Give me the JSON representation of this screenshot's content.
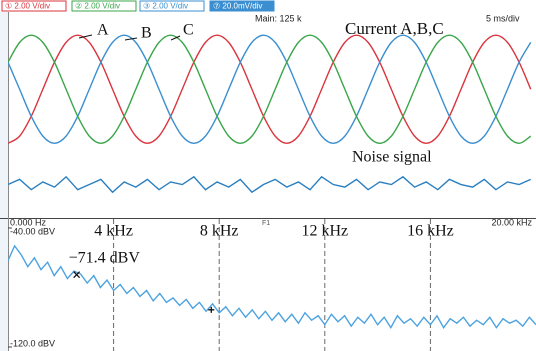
{
  "header": {
    "channels": [
      {
        "label": "① 2.00 V/div",
        "color": "#d9363e",
        "filled": false
      },
      {
        "label": "② 2.00 V/div",
        "color": "#3aa64a",
        "filled": false
      },
      {
        "label": "③ 2.00 V/div",
        "color": "#3b8fd0",
        "filled": false
      },
      {
        "label": "⑦ 20.0mV/div",
        "color": "#3b8fd0",
        "filled": true
      }
    ]
  },
  "chart_data": [
    {
      "type": "line",
      "title": "Current A,B,C",
      "annotations": [
        "Main: 125 k",
        "5 ms/div"
      ],
      "xlim": [
        0,
        50
      ],
      "ylim": [
        -5,
        3
      ],
      "x": [
        0,
        1.1,
        2.2,
        3.3,
        4.4,
        5.5,
        6.6,
        7.7,
        8.8,
        9.9,
        11,
        12.1,
        13.2,
        14.3,
        15.4,
        16.5,
        17.6,
        18.7,
        19.8,
        20.9,
        22,
        23.1,
        24.2,
        25.3,
        26.4,
        27.5,
        28.6,
        29.7,
        30.8,
        31.9,
        33,
        34.1,
        35.2,
        36.3,
        37.4,
        38.5,
        39.6,
        40.7,
        41.8,
        42.9,
        44,
        45.1,
        46.2,
        47.3,
        48.4,
        49.5
      ],
      "series": [
        {
          "name": "A",
          "color": "#d9363e",
          "values": [
            -2.1,
            -1.82,
            -1.05,
            0,
            1.05,
            1.82,
            2.1,
            1.82,
            1.05,
            0,
            -1.05,
            -1.82,
            -2.1,
            -1.82,
            -1.05,
            0,
            1.05,
            1.82,
            2.1,
            1.82,
            1.05,
            0,
            -1.05,
            -1.82,
            -2.1,
            -1.82,
            -1.05,
            0,
            1.05,
            1.82,
            2.1,
            1.82,
            1.05,
            0,
            -1.05,
            -1.82,
            -2.1,
            -1.82,
            -1.05,
            0,
            1.05,
            1.82,
            2.1,
            1.82,
            1.05,
            0
          ]
        },
        {
          "name": "B",
          "color": "#3b8fd0",
          "values": [
            1.05,
            0,
            -1.05,
            -1.82,
            -2.1,
            -1.82,
            -1.05,
            0,
            1.05,
            1.82,
            2.1,
            1.82,
            1.05,
            0,
            -1.05,
            -1.82,
            -2.1,
            -1.82,
            -1.05,
            0,
            1.05,
            1.82,
            2.1,
            1.82,
            1.05,
            0,
            -1.05,
            -1.82,
            -2.1,
            -1.82,
            -1.05,
            0,
            1.05,
            1.82,
            2.1,
            1.82,
            1.05,
            0,
            -1.05,
            -1.82,
            -2.1,
            -1.82,
            -1.05,
            0,
            1.05,
            1.82
          ]
        },
        {
          "name": "C",
          "color": "#3aa64a",
          "values": [
            1.05,
            1.82,
            2.1,
            1.82,
            1.05,
            0,
            -1.05,
            -1.82,
            -2.1,
            -1.82,
            -1.05,
            0,
            1.05,
            1.82,
            2.1,
            1.82,
            1.05,
            0,
            -1.05,
            -1.82,
            -2.1,
            -1.82,
            -1.05,
            0,
            1.05,
            1.82,
            2.1,
            1.82,
            1.05,
            0,
            -1.05,
            -1.82,
            -2.1,
            -1.82,
            -1.05,
            0,
            1.05,
            1.82,
            2.1,
            1.82,
            1.05,
            0,
            -1.05,
            -1.82,
            -2.1,
            -1.82
          ]
        },
        {
          "name": "Noise signal",
          "color": "#2a7fc0",
          "values": [
            -3.7,
            -3.5,
            -3.9,
            -3.6,
            -3.8,
            -3.4,
            -3.9,
            -3.7,
            -3.5,
            -4.0,
            -3.6,
            -3.8,
            -3.5,
            -3.9,
            -3.6,
            -3.7,
            -3.4,
            -3.9,
            -3.6,
            -3.8,
            -3.5,
            -4.0,
            -3.7,
            -3.5,
            -3.8,
            -3.6,
            -3.9,
            -3.4,
            -3.7,
            -3.8,
            -3.5,
            -3.9,
            -3.6,
            -3.7,
            -3.4,
            -3.8,
            -3.6,
            -3.9,
            -3.5,
            -3.7,
            -3.8,
            -3.5,
            -3.9,
            -3.6,
            -3.7,
            -3.5
          ]
        }
      ]
    },
    {
      "type": "line",
      "annotations": [
        "F1"
      ],
      "xlim": [
        0,
        20
      ],
      "ylim": [
        -120,
        -40
      ],
      "xticks": [
        {
          "value": 0,
          "label": "0.000 Hz"
        },
        {
          "value": 4,
          "label": "4 kHz"
        },
        {
          "value": 8,
          "label": "8 kHz"
        },
        {
          "value": 12,
          "label": "12 kHz"
        },
        {
          "value": 16,
          "label": "16 kHz"
        },
        {
          "value": 20,
          "label": "20.00 kHz"
        }
      ],
      "yticks": [
        {
          "value": -40,
          "label": "-40.00 dBV"
        },
        {
          "value": -120,
          "label": "-120.0 dBV"
        }
      ],
      "x": [
        0,
        0.25,
        0.5,
        0.75,
        1,
        1.25,
        1.5,
        1.75,
        2,
        2.25,
        2.5,
        2.75,
        3,
        3.25,
        3.5,
        3.75,
        4,
        4.25,
        4.5,
        4.75,
        5,
        5.25,
        5.5,
        5.75,
        6,
        6.25,
        6.5,
        6.75,
        7,
        7.25,
        7.5,
        7.75,
        8,
        8.25,
        8.5,
        8.75,
        9,
        9.25,
        9.5,
        9.75,
        10,
        10.25,
        10.5,
        10.75,
        11,
        11.25,
        11.5,
        11.75,
        12,
        12.25,
        12.5,
        12.75,
        13,
        13.25,
        13.5,
        13.75,
        14,
        14.25,
        14.5,
        14.75,
        15,
        15.25,
        15.5,
        15.75,
        16,
        16.25,
        16.5,
        16.75,
        17,
        17.25,
        17.5,
        17.75,
        18,
        18.25,
        18.5,
        18.75,
        19,
        19.25,
        19.5,
        19.75,
        20
      ],
      "series": [
        {
          "color": "#4da3e0",
          "values": [
            -62,
            -52,
            -58,
            -66,
            -60,
            -68,
            -63,
            -72,
            -66,
            -74,
            -69,
            -71,
            -77,
            -72,
            -80,
            -75,
            -82,
            -78,
            -84,
            -80,
            -86,
            -82,
            -89,
            -84,
            -90,
            -87,
            -92,
            -88,
            -94,
            -90,
            -96,
            -91,
            -97,
            -93,
            -99,
            -94,
            -100,
            -95,
            -101,
            -96,
            -102,
            -97,
            -103,
            -98,
            -104,
            -97,
            -102,
            -99,
            -105,
            -98,
            -103,
            -99,
            -106,
            -100,
            -104,
            -98,
            -105,
            -100,
            -107,
            -99,
            -104,
            -101,
            -106,
            -100,
            -105,
            -99,
            -107,
            -101,
            -104,
            -100,
            -106,
            -102,
            -105,
            -100,
            -107,
            -101,
            -104,
            -102,
            -106,
            -100,
            -105
          ]
        }
      ],
      "markers": [
        {
          "x": 2.6,
          "y": -71.4,
          "label": "−71.4 dBV"
        }
      ],
      "cursor": {
        "x": 7.7,
        "y": -95
      }
    }
  ]
}
